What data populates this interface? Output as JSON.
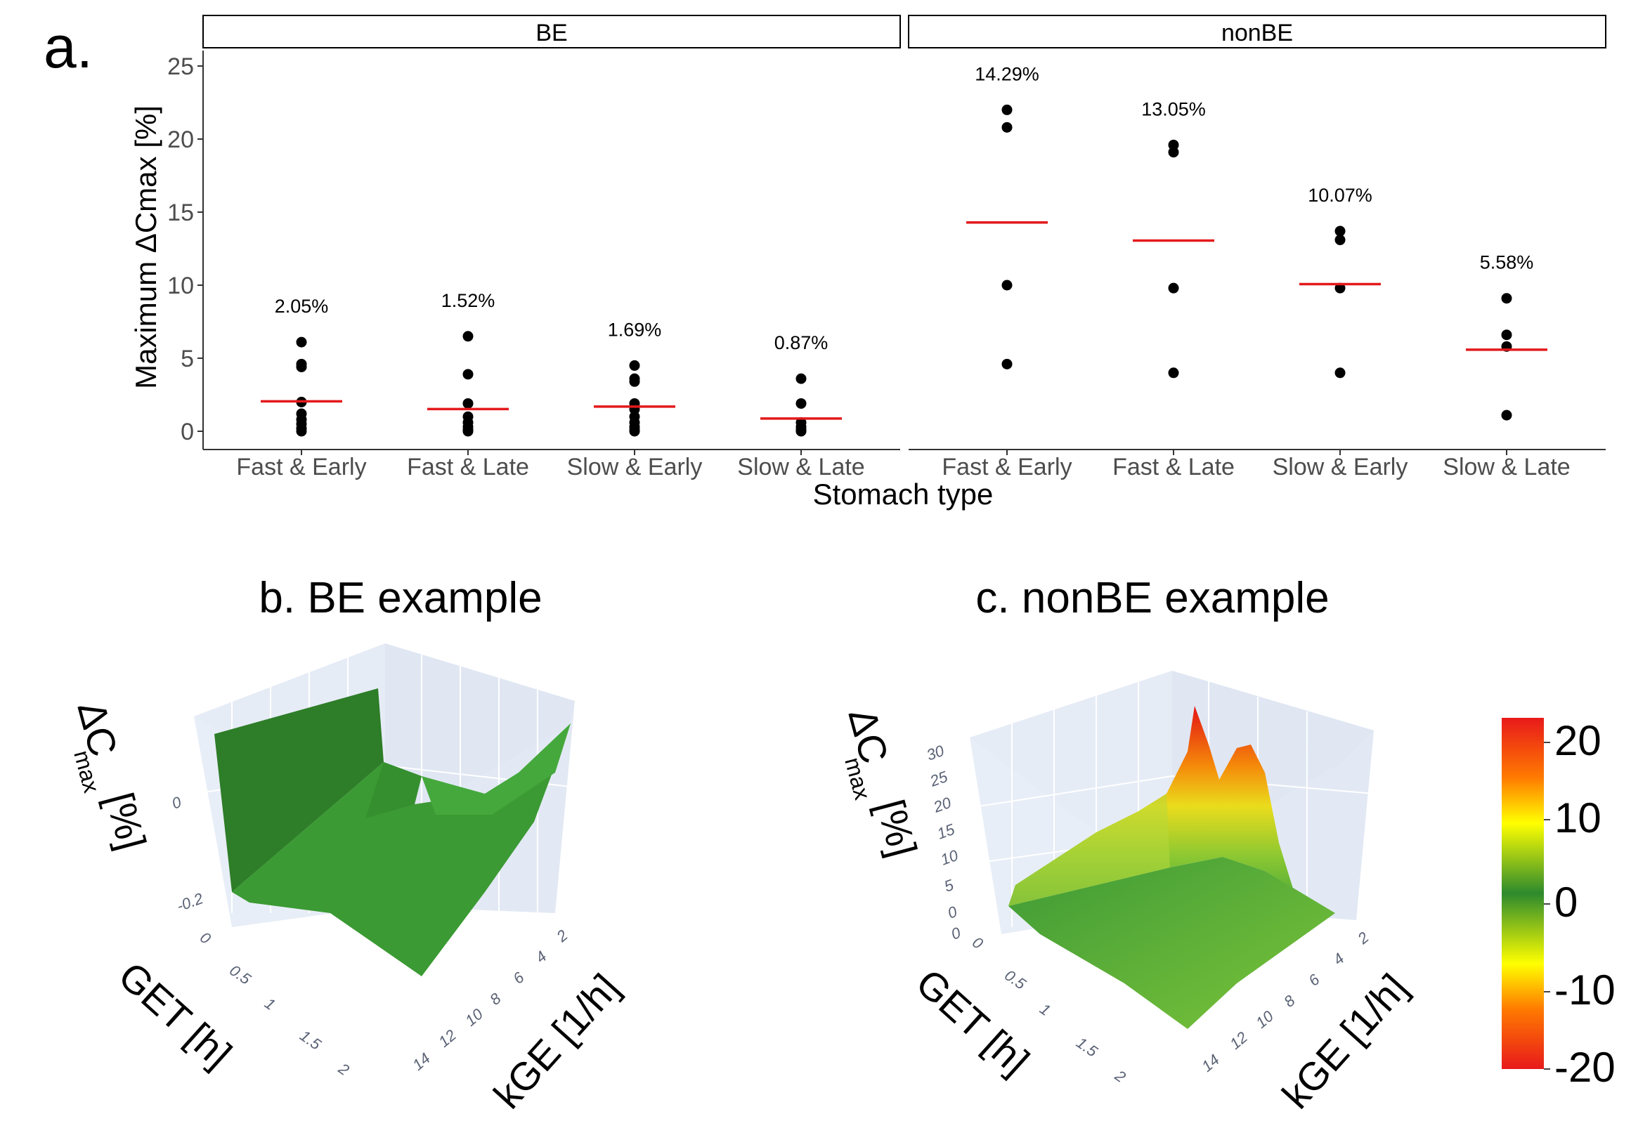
{
  "figure": {
    "panel_a": {
      "letter": "a."
    },
    "panel_b": {
      "title": "b. BE example"
    },
    "panel_c": {
      "title": "c. nonBE example"
    }
  },
  "colors": {
    "mean_line": "#e31a1c",
    "points": "#000000",
    "pane": "#e5ecf6",
    "grid": "#ffffff"
  },
  "chart_data": [
    {
      "type": "scatter",
      "title": "",
      "xlabel": "Stomach type",
      "ylabel": "Maximum ΔCmax [%]",
      "ylim": [
        -1,
        26
      ],
      "yticks": [
        0,
        5,
        10,
        15,
        20,
        25
      ],
      "categories": [
        "Fast & Early",
        "Fast & Late",
        "Slow & Early",
        "Slow & Late"
      ],
      "grid": false,
      "legend": "none",
      "facets": [
        {
          "name": "BE",
          "groups": [
            {
              "category": "Fast & Early",
              "points": [
                6.1,
                4.6,
                4.4,
                2.0,
                1.2,
                0.8,
                0.5,
                0.2,
                0.0
              ],
              "mean": 2.05,
              "label": "2.05%"
            },
            {
              "category": "Fast & Late",
              "points": [
                6.5,
                3.9,
                1.9,
                1.0,
                0.6,
                0.3,
                0.1,
                0.0
              ],
              "mean": 1.52,
              "label": "1.52%"
            },
            {
              "category": "Slow & Early",
              "points": [
                4.5,
                3.6,
                3.4,
                1.9,
                1.5,
                1.0,
                0.6,
                0.3,
                0.1,
                0.0
              ],
              "mean": 1.69,
              "label": "1.69%"
            },
            {
              "category": "Slow & Late",
              "points": [
                3.6,
                1.9,
                0.6,
                0.3,
                0.1,
                0.0
              ],
              "mean": 0.87,
              "label": "0.87%"
            }
          ]
        },
        {
          "name": "nonBE",
          "groups": [
            {
              "category": "Fast & Early",
              "points": [
                22.0,
                20.8,
                10.0,
                4.6
              ],
              "mean": 14.29,
              "label": "14.29%"
            },
            {
              "category": "Fast & Late",
              "points": [
                19.6,
                19.1,
                9.8,
                4.0
              ],
              "mean": 13.05,
              "label": "13.05%"
            },
            {
              "category": "Slow & Early",
              "points": [
                13.7,
                13.1,
                9.8,
                4.0
              ],
              "mean": 10.07,
              "label": "10.07%"
            },
            {
              "category": "Slow & Late",
              "points": [
                9.1,
                6.6,
                5.8,
                1.1
              ],
              "mean": 5.58,
              "label": "5.58%"
            }
          ]
        }
      ]
    },
    {
      "type": "surface",
      "title": "b. BE example",
      "zlabel": "ΔC",
      "zlabel_sub": "max",
      "zlabel_unit": "[%]",
      "xlabel": "GET [h]",
      "ylabel": "kGE [1/h]",
      "x_ticks": [
        "0",
        "0.5",
        "1",
        "1.5",
        "2"
      ],
      "y_ticks": [
        "2",
        "4",
        "6",
        "8",
        "10",
        "12",
        "14"
      ],
      "z_ticks": [
        "0",
        "-0.2"
      ],
      "surface_color": "#2f8a2a"
    },
    {
      "type": "surface",
      "title": "c. nonBE example",
      "zlabel": "ΔC",
      "zlabel_sub": "max",
      "zlabel_unit": "[%]",
      "xlabel": "GET [h]",
      "ylabel": "kGE [1/h]",
      "x_ticks": [
        "0",
        "0.5",
        "1",
        "1.5",
        "2"
      ],
      "y_ticks": [
        "2",
        "4",
        "6",
        "8",
        "10",
        "12",
        "14"
      ],
      "z_ticks": [
        "30",
        "25",
        "20",
        "15",
        "10",
        "5",
        "0",
        "0"
      ],
      "colorbar": {
        "ticks": [
          "20",
          "10",
          "0",
          "-10",
          "-20"
        ],
        "stops": [
          "#e8191b",
          "#ff7a00",
          "#ffff00",
          "#2d8a2d",
          "#ffff00",
          "#ff7a00",
          "#e8191b"
        ]
      }
    }
  ]
}
